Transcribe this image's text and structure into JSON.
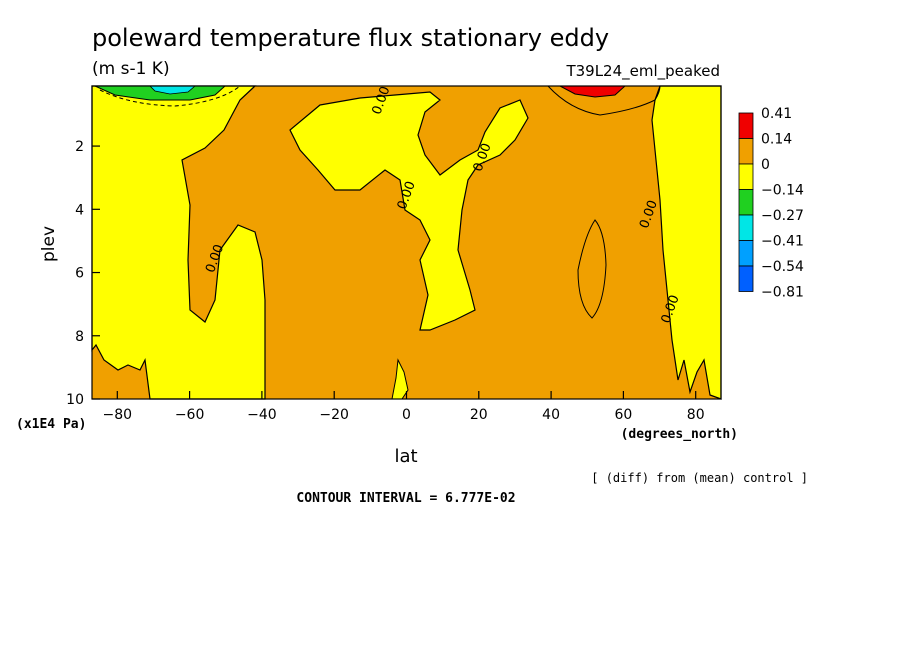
{
  "chart_data": {
    "type": "heatmap",
    "title": "poleward temperature flux stationary eddy",
    "units": "(m s-1 K)",
    "run_label": "T39L24_eml_peaked",
    "xlabel": "lat",
    "x_units": "(degrees_north)",
    "ylabel": "plev",
    "y_units": "(x1E4 Pa)",
    "x_ticks": [
      -80,
      -60,
      -40,
      -20,
      0,
      20,
      40,
      60,
      80
    ],
    "y_ticks": [
      2,
      4,
      6,
      8,
      10
    ],
    "xlim": [
      -87,
      87
    ],
    "ylim": [
      10,
      0.1
    ],
    "contour_interval_text": "CONTOUR INTERVAL = 6.777E-02",
    "footnote": "[ (diff) from (mean) control ]",
    "contour_labels": [
      {
        "text": "0.00",
        "x": -52,
        "y": 5.6
      },
      {
        "text": "0.00",
        "x": -6,
        "y": 0.6
      },
      {
        "text": "0.00",
        "x": 1,
        "y": 3.6
      },
      {
        "text": "0.00",
        "x": 22,
        "y": 2.4
      },
      {
        "text": "0.00",
        "x": 68,
        "y": 4.2
      },
      {
        "text": "0.00",
        "x": 74,
        "y": 7.2
      }
    ],
    "legend": {
      "labels": [
        "0.41",
        "0.14",
        "0",
        "−0.14",
        "−0.27",
        "−0.41",
        "−0.54",
        "−0.81"
      ],
      "colors": [
        "#f00000",
        "#f0a000",
        "#ffff00",
        "#20d020",
        "#00e6e6",
        "#00a0ff",
        "#0060ff"
      ]
    },
    "colors": {
      "positive": "#f0a000",
      "near_zero": "#ffff00",
      "negative": "#20d020",
      "max": "#f00000",
      "min": "#00a0ff"
    }
  }
}
